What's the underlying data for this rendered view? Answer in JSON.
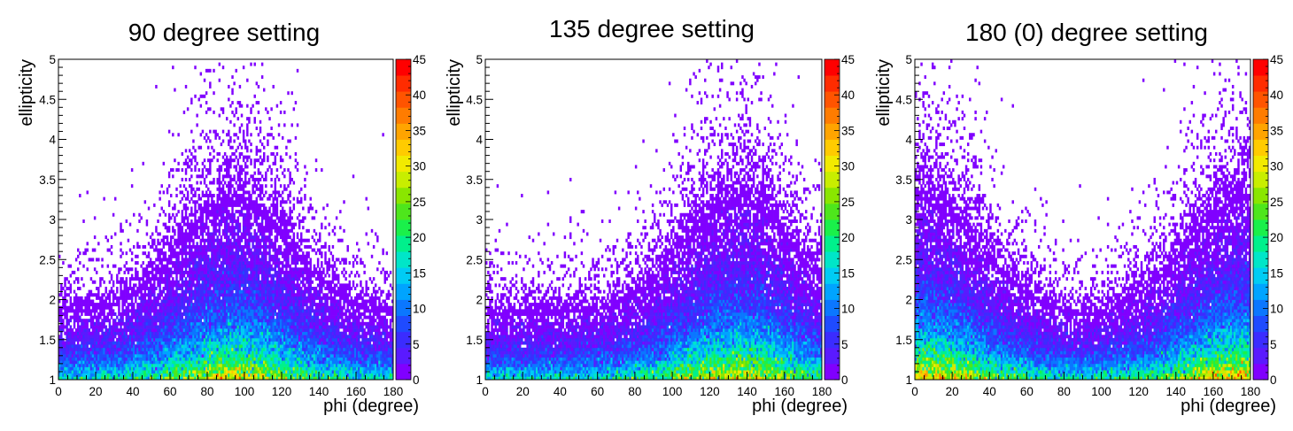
{
  "chart_data": [
    {
      "type": "heatmap",
      "title": "90 degree setting",
      "xlabel": "phi (degree)",
      "ylabel": "ellipticity",
      "xlim": [
        0,
        180
      ],
      "ylim": [
        1,
        5
      ],
      "x_ticks": [
        "0",
        "20",
        "40",
        "60",
        "80",
        "100",
        "120",
        "140",
        "160",
        "180"
      ],
      "y_ticks": [
        "1",
        "1.5",
        "2",
        "2.5",
        "3",
        "3.5",
        "4",
        "4.5",
        "5"
      ],
      "colorbar": {
        "min": 0,
        "max": 45,
        "ticks": [
          "0",
          "5",
          "10",
          "15",
          "20",
          "25",
          "30",
          "35",
          "40",
          "45"
        ]
      },
      "bin_grid": {
        "nx": 180,
        "ny": 100
      },
      "distribution": {
        "peak_phi": 95,
        "phi_spread": 30,
        "uniform_fraction": 0.35,
        "peak_count": 30
      }
    },
    {
      "type": "heatmap",
      "title": "135 degree setting",
      "xlabel": "phi (degree)",
      "ylabel": "ellipticity",
      "xlim": [
        0,
        180
      ],
      "ylim": [
        1,
        5
      ],
      "x_ticks": [
        "0",
        "20",
        "40",
        "60",
        "80",
        "100",
        "120",
        "140",
        "160",
        "180"
      ],
      "y_ticks": [
        "1",
        "1.5",
        "2",
        "2.5",
        "3",
        "3.5",
        "4",
        "4.5",
        "5"
      ],
      "colorbar": {
        "min": 0,
        "max": 45,
        "ticks": [
          "0",
          "5",
          "10",
          "15",
          "20",
          "25",
          "30",
          "35",
          "40",
          "45"
        ]
      },
      "bin_grid": {
        "nx": 180,
        "ny": 100
      },
      "distribution": {
        "peak_phi": 135,
        "phi_spread": 30,
        "uniform_fraction": 0.35,
        "peak_count": 30
      }
    },
    {
      "type": "heatmap",
      "title": "180 (0) degree setting",
      "xlabel": "phi (degree)",
      "ylabel": "ellipticity",
      "xlim": [
        0,
        180
      ],
      "ylim": [
        1,
        5
      ],
      "x_ticks": [
        "0",
        "20",
        "40",
        "60",
        "80",
        "100",
        "120",
        "140",
        "160",
        "180"
      ],
      "y_ticks": [
        "1",
        "1.5",
        "2",
        "2.5",
        "3",
        "3.5",
        "4",
        "4.5",
        "5"
      ],
      "colorbar": {
        "min": 0,
        "max": 45,
        "ticks": [
          "0",
          "5",
          "10",
          "15",
          "20",
          "25",
          "30",
          "35",
          "40",
          "45"
        ]
      },
      "bin_grid": {
        "nx": 180,
        "ny": 100
      },
      "distribution": {
        "peak_phi": 0,
        "phi_spread": 35,
        "uniform_fraction": 0.3,
        "peak_count": 33,
        "wraps_at_180": true
      }
    }
  ],
  "palette": [
    "#8000ff",
    "#5a1aff",
    "#3b2cff",
    "#1f4bff",
    "#0b77ff",
    "#00a4ff",
    "#00ccf4",
    "#00e6c8",
    "#00f08c",
    "#1af04a",
    "#4ee61c",
    "#8ae600",
    "#c8ee00",
    "#f2ea00",
    "#ffcb00",
    "#ffa400",
    "#ff7c00",
    "#ff5400",
    "#ff2c00",
    "#ff0000"
  ]
}
